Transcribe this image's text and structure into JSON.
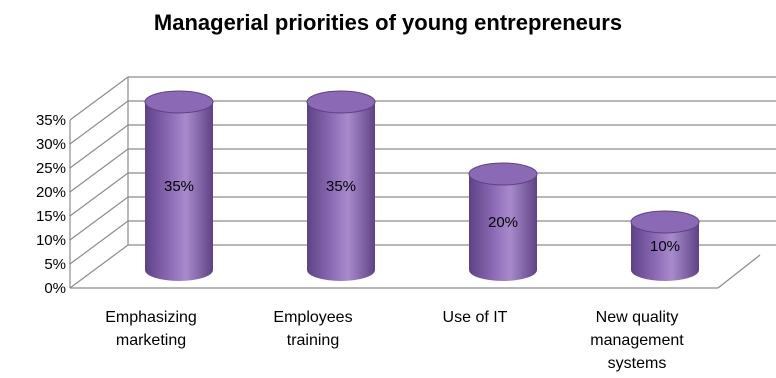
{
  "chart_data": {
    "type": "bar",
    "title": "Managerial priorities of young entrepreneurs",
    "categories": [
      [
        "Emphasizing",
        "marketing"
      ],
      [
        "Employees",
        "training"
      ],
      [
        "Use of IT"
      ],
      [
        "New quality",
        "management",
        "systems"
      ]
    ],
    "values": [
      35,
      35,
      20,
      10
    ],
    "data_labels": [
      "35%",
      "35%",
      "20%",
      "10%"
    ],
    "y_ticks": [
      "0%",
      "5%",
      "10%",
      "15%",
      "20%",
      "25%",
      "30%",
      "35%"
    ],
    "ylim": [
      0,
      35
    ],
    "grid": true,
    "legend": false,
    "bar_color": "#8B69B5",
    "bar_top_color": "#A88BCC",
    "bar_dark_color": "#5E4285"
  }
}
